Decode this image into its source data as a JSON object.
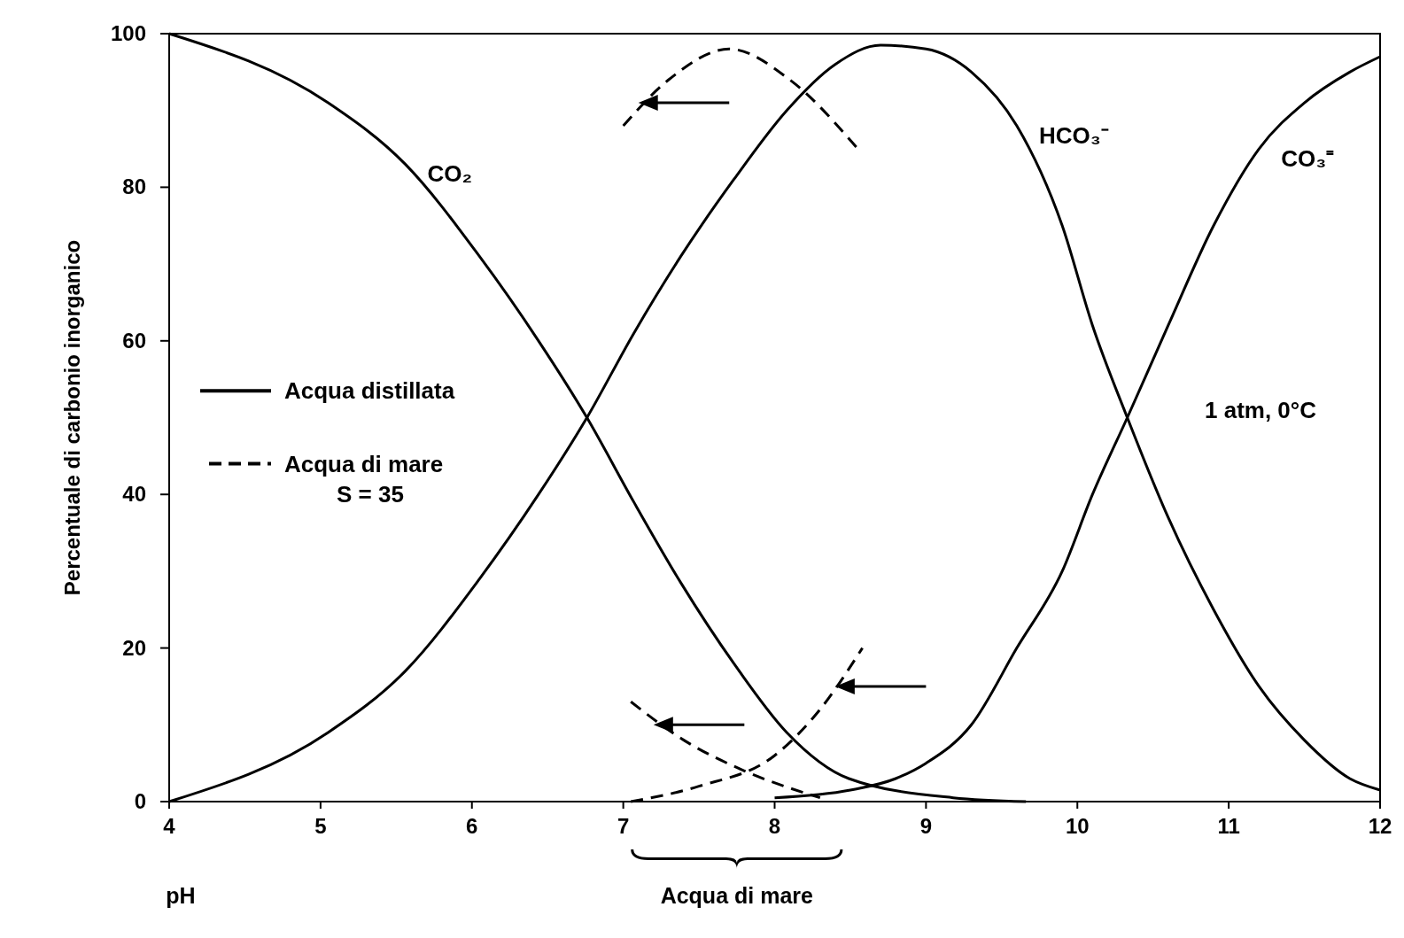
{
  "chart_data": {
    "type": "line",
    "xlabel": "pH",
    "ylabel": "Percentuale di carbonio inorganico",
    "xlim": [
      4,
      12
    ],
    "ylim": [
      0,
      100
    ],
    "xticks": [
      4,
      5,
      6,
      7,
      8,
      9,
      10,
      11,
      12
    ],
    "yticks": [
      0,
      20,
      40,
      60,
      80,
      100
    ],
    "grid": false,
    "marker": "none",
    "series": [
      {
        "name": "CO₂",
        "color": "#000000",
        "line_style": "solid",
        "x": [
          4,
          5.05,
          5.56,
          6.05,
          6.44,
          6.76,
          7.07,
          7.38,
          7.73,
          8.08,
          8.49,
          9.18,
          9.66
        ],
        "values": [
          100,
          91,
          83,
          71,
          60,
          50,
          39,
          28.5,
          18,
          9,
          3,
          0.5,
          0
        ]
      },
      {
        "name": "HCO₃⁻",
        "color": "#000000",
        "line_style": "solid",
        "x": [
          4,
          5.05,
          5.56,
          6.05,
          6.44,
          6.76,
          7.07,
          7.38,
          7.73,
          8.08,
          8.4,
          8.7,
          9,
          9.3,
          9.6,
          9.9,
          10.1,
          10.33,
          10.6,
          10.9,
          11.2,
          11.5,
          11.8,
          12
        ],
        "values": [
          0,
          9,
          17,
          29,
          40,
          50,
          61,
          71,
          81,
          90,
          96,
          98.5,
          98,
          95,
          88,
          75,
          62,
          50,
          37,
          25,
          15,
          8,
          3,
          1.5
        ]
      },
      {
        "name": "CO₃⁼",
        "color": "#000000",
        "line_style": "solid",
        "x": [
          8,
          8.5,
          8.8,
          9,
          9.3,
          9.6,
          9.9,
          10.1,
          10.33,
          10.6,
          10.9,
          11.2,
          11.5,
          11.8,
          12
        ],
        "values": [
          0.5,
          1.5,
          3,
          5,
          10,
          20,
          30,
          40,
          50,
          62,
          75,
          85,
          91,
          95,
          97
        ]
      },
      {
        "color": "#000000",
        "line_style": "dashed",
        "x": [
          7,
          7.3,
          7.7,
          8.1,
          8.55
        ],
        "values": [
          88,
          94,
          98,
          94,
          85
        ]
      },
      {
        "color": "#000000",
        "line_style": "dashed",
        "x": [
          7.05,
          7.4,
          7.8,
          8.3
        ],
        "values": [
          13,
          8,
          4,
          0.5
        ]
      },
      {
        "color": "#000000",
        "line_style": "dashed",
        "x": [
          7.05,
          7.5,
          8,
          8.3,
          8.58
        ],
        "values": [
          0,
          2,
          6,
          12,
          20
        ]
      }
    ],
    "annotations": [
      "Acqua distillata",
      "Acqua di mare",
      "S = 35",
      "1 atm, 0°C",
      "Acqua di mare"
    ]
  }
}
